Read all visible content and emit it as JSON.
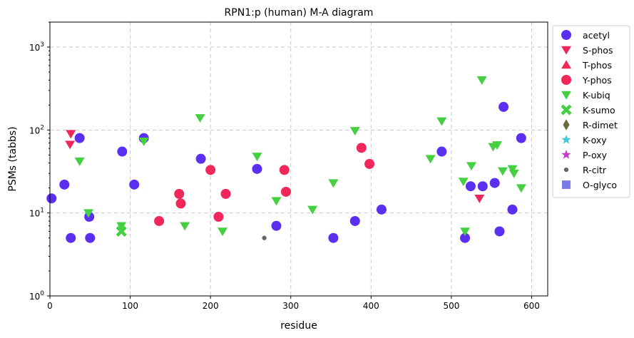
{
  "chart_data": {
    "type": "scatter",
    "title": "RPN1:p (human) M-A diagram",
    "xlabel": "residue",
    "ylabel": "PSMs (tabbs)",
    "xlim": [
      0,
      620
    ],
    "ylim": [
      1,
      2000
    ],
    "yscale": "log",
    "grid": true,
    "legend_position": "outside-right",
    "x_ticks": [
      {
        "value": 0,
        "label": "0"
      },
      {
        "value": 100,
        "label": "100"
      },
      {
        "value": 200,
        "label": "200"
      },
      {
        "value": 300,
        "label": "300"
      },
      {
        "value": 400,
        "label": "400"
      },
      {
        "value": 500,
        "label": "500"
      },
      {
        "value": 600,
        "label": "600"
      }
    ],
    "y_ticks": [
      {
        "value": 1,
        "base": "10",
        "exp": "0"
      },
      {
        "value": 10,
        "base": "10",
        "exp": "1"
      },
      {
        "value": 100,
        "base": "10",
        "exp": "2"
      },
      {
        "value": 1000,
        "base": "10",
        "exp": "3"
      }
    ],
    "series": [
      {
        "name": "acetyl",
        "marker": "circle",
        "color": "#5b2ff0",
        "points": [
          [
            2,
            15
          ],
          [
            18,
            22
          ],
          [
            26,
            5
          ],
          [
            37,
            80
          ],
          [
            49,
            9
          ],
          [
            50,
            5
          ],
          [
            90,
            55
          ],
          [
            105,
            22
          ],
          [
            117,
            80
          ],
          [
            188,
            45
          ],
          [
            258,
            34
          ],
          [
            282,
            7
          ],
          [
            353,
            5
          ],
          [
            380,
            8
          ],
          [
            413,
            11
          ],
          [
            488,
            55
          ],
          [
            517,
            5
          ],
          [
            524,
            21
          ],
          [
            539,
            21
          ],
          [
            554,
            23
          ],
          [
            560,
            6
          ],
          [
            565,
            190
          ],
          [
            576,
            11
          ],
          [
            587,
            80
          ]
        ]
      },
      {
        "name": "S-phos",
        "marker": "triangle-down",
        "color": "#f0285a",
        "points": [
          [
            25,
            67
          ],
          [
            26,
            90
          ],
          [
            535,
            15
          ]
        ]
      },
      {
        "name": "T-phos",
        "marker": "triangle-up",
        "color": "#f0285a",
        "points": []
      },
      {
        "name": "Y-phos",
        "marker": "circle",
        "color": "#f0285a",
        "points": [
          [
            136,
            8
          ],
          [
            161,
            17
          ],
          [
            163,
            13
          ],
          [
            200,
            33
          ],
          [
            210,
            9
          ],
          [
            219,
            17
          ],
          [
            292,
            33
          ],
          [
            294,
            18
          ],
          [
            388,
            61
          ],
          [
            398,
            39
          ]
        ]
      },
      {
        "name": "K-ubiq",
        "marker": "triangle-down",
        "color": "#44d040",
        "points": [
          [
            37,
            42
          ],
          [
            48,
            10
          ],
          [
            89,
            7
          ],
          [
            117,
            73
          ],
          [
            168,
            7
          ],
          [
            187,
            140
          ],
          [
            215,
            6
          ],
          [
            258,
            48
          ],
          [
            282,
            14
          ],
          [
            327,
            11
          ],
          [
            353,
            23
          ],
          [
            380,
            98
          ],
          [
            474,
            45
          ],
          [
            488,
            128
          ],
          [
            515,
            24
          ],
          [
            517,
            6
          ],
          [
            525,
            37
          ],
          [
            538,
            400
          ],
          [
            552,
            63
          ],
          [
            557,
            66
          ],
          [
            564,
            32
          ],
          [
            576,
            34
          ],
          [
            578,
            30
          ],
          [
            587,
            20
          ]
        ]
      },
      {
        "name": "K-sumo",
        "marker": "x",
        "color": "#44d040",
        "points": [
          [
            89,
            6
          ]
        ]
      },
      {
        "name": "R-dimet",
        "marker": "diamond",
        "color": "#6b6b3a",
        "points": []
      },
      {
        "name": "K-oxy",
        "marker": "star",
        "color": "#40c8d8",
        "points": []
      },
      {
        "name": "P-oxy",
        "marker": "star",
        "color": "#c040c8",
        "points": []
      },
      {
        "name": "R-citr",
        "marker": "dot",
        "color": "#666666",
        "points": [
          [
            267,
            5
          ]
        ]
      },
      {
        "name": "O-glyco",
        "marker": "square",
        "color": "#6a6ae8",
        "points": []
      }
    ]
  }
}
